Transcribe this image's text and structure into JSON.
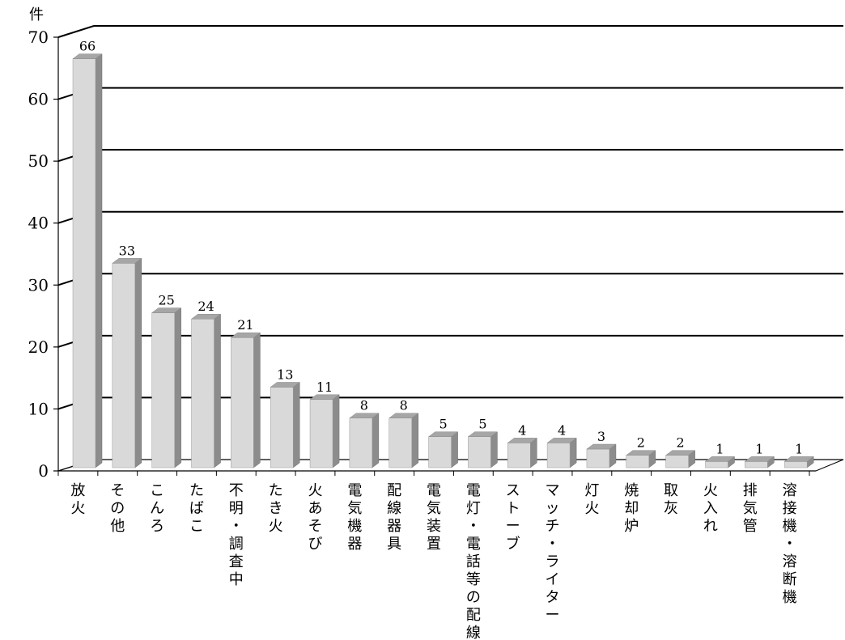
{
  "chart_data": {
    "type": "bar",
    "title": "",
    "xlabel": "",
    "ylabel": "件",
    "ylim": [
      0,
      70
    ],
    "yticks": [
      0,
      10,
      20,
      30,
      40,
      50,
      60,
      70
    ],
    "grid": true,
    "legend": "none",
    "style": "3d-column",
    "categories": [
      "放火",
      "その他",
      "こんろ",
      "たばこ",
      "不明・調査中",
      "たき火",
      "火あそび",
      "電気機器",
      "配線器具",
      "電気装置",
      "電灯・電話等の配線",
      "ストーブ",
      "マッチ・ライター",
      "灯火",
      "焼却炉",
      "取灰",
      "火入れ",
      "排気管",
      "溶接機・溶断機"
    ],
    "values": [
      66,
      33,
      25,
      24,
      21,
      13,
      11,
      8,
      8,
      5,
      5,
      4,
      4,
      3,
      2,
      2,
      1,
      1,
      1
    ],
    "colors": {
      "bar_front": "#d9d9d9",
      "bar_side": "#8c8c8c",
      "bar_top": "#a6a6a6",
      "grid": "#000000"
    }
  }
}
